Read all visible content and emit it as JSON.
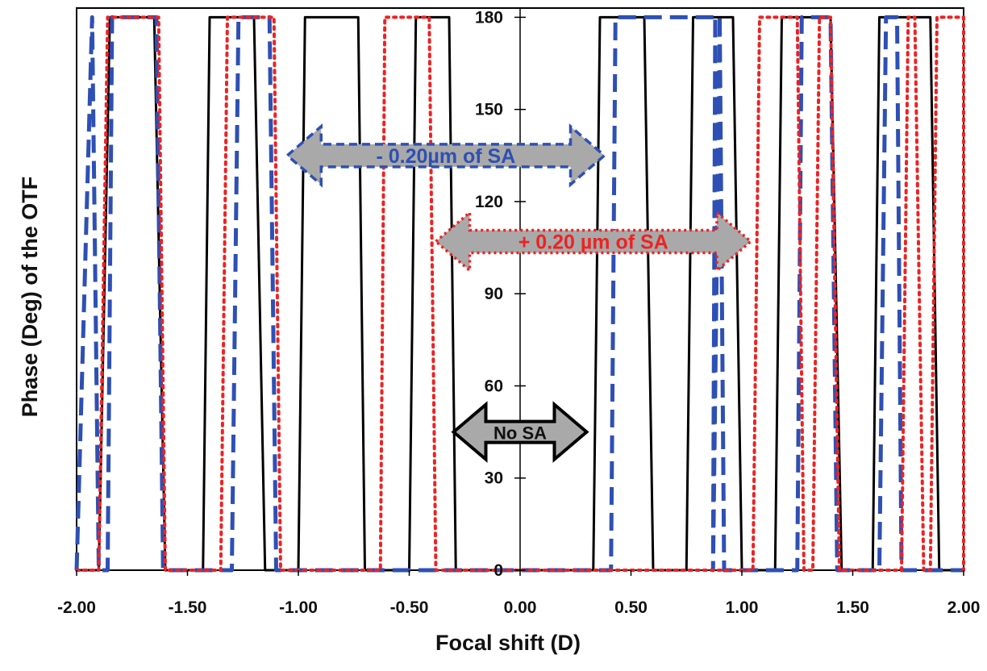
{
  "chart_data": {
    "type": "line",
    "xlabel": "Focal shift (D)",
    "ylabel": "Phase (Deg) of the OTF",
    "xlim": [
      -2.0,
      2.0
    ],
    "ylim": [
      0,
      183
    ],
    "x_ticks": [
      "-2.00",
      "-1.50",
      "-1.00",
      "-0.50",
      "0.00",
      "0.50",
      "1.00",
      "1.50",
      "2.00"
    ],
    "y_ticks": [
      "0",
      "30",
      "60",
      "90",
      "120",
      "150",
      "180"
    ],
    "grid": false,
    "legend": "none",
    "series": [
      {
        "color": "#000000",
        "dash": "solid",
        "values": [
          180,
          0,
          180,
          0,
          180,
          0,
          180,
          0,
          180,
          0,
          180,
          0,
          180,
          0,
          180,
          0,
          180,
          0
        ],
        "pulses_x": [
          [
            -1.9,
            -1.85,
            -1.65,
            -1.6
          ],
          [
            -1.43,
            -1.4,
            -1.2,
            -1.15
          ],
          [
            -1.0,
            -0.97,
            -0.73,
            -0.7
          ],
          [
            -0.5,
            -0.47,
            -0.32,
            -0.29
          ],
          [
            0.33,
            0.36,
            0.56,
            0.6
          ],
          [
            0.75,
            0.78,
            0.96,
            1.0
          ],
          [
            1.15,
            1.18,
            1.4,
            1.45
          ],
          [
            1.59,
            1.62,
            1.85,
            1.89
          ]
        ]
      },
      {
        "color": "#2e50b4",
        "dash": "dashed",
        "pulses_x": [
          [
            -2.0,
            -1.93,
            -1.93,
            -1.9
          ],
          [
            -1.86,
            -1.84,
            -1.64,
            -1.61
          ],
          [
            -1.3,
            -1.27,
            -1.13,
            -1.1
          ],
          [
            0.41,
            0.43,
            0.9,
            0.87
          ],
          [
            0.87,
            0.88,
            0.9,
            0.92
          ],
          [
            1.25,
            1.27,
            1.4,
            1.43
          ],
          [
            1.62,
            1.65,
            1.7,
            1.72
          ]
        ]
      },
      {
        "color": "#ee2222",
        "dash": "dotted",
        "pulses_x": [
          [
            -1.9,
            -1.86,
            -1.63,
            -1.6
          ],
          [
            -1.35,
            -1.32,
            -1.11,
            -1.08
          ],
          [
            -0.63,
            -0.61,
            -0.41,
            -0.38
          ],
          [
            1.05,
            1.08,
            1.25,
            1.28
          ],
          [
            1.32,
            1.35,
            1.4,
            1.44
          ],
          [
            1.72,
            1.75,
            1.78,
            1.82
          ],
          [
            1.85,
            1.88,
            2.0,
            2.0
          ]
        ]
      }
    ],
    "annotations": [
      {
        "text": "- 0.20µm of SA",
        "color": "#2e50b4",
        "x_range": [
          -1.05,
          0.38
        ],
        "y": 135
      },
      {
        "text": "+ 0.20 µm of SA",
        "color": "#ee2222",
        "x_range": [
          -0.38,
          1.04
        ],
        "y": 107
      },
      {
        "text": "No SA",
        "color": "#000000",
        "x_range": [
          -0.3,
          0.3
        ],
        "y": 45
      }
    ]
  }
}
